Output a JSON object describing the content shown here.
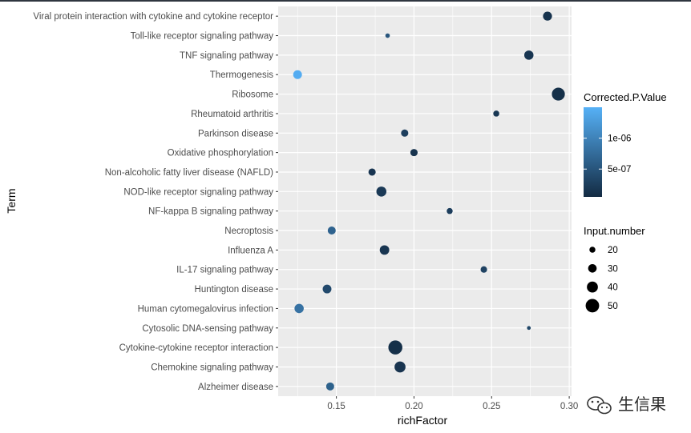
{
  "chart_data": {
    "type": "scatter",
    "xlabel": "richFactor",
    "ylabel": "Term",
    "xlim": [
      0.1125,
      0.3015
    ],
    "x_ticks": [
      0.15,
      0.2,
      0.25,
      0.3
    ],
    "x_tick_labels": [
      "0.15",
      "0.20",
      "0.25",
      "0.30"
    ],
    "terms": [
      "Alzheimer disease",
      "Chemokine signaling pathway",
      "Cytokine-cytokine receptor interaction",
      "Cytosolic DNA-sensing pathway",
      "Human cytomegalovirus infection",
      "Huntington disease",
      "IL-17 signaling pathway",
      "Influenza A",
      "Necroptosis",
      "NF-kappa B signaling pathway",
      "NOD-like receptor signaling pathway",
      "Non-alcoholic fatty liver disease (NAFLD)",
      "Oxidative phosphorylation",
      "Parkinson disease",
      "Rheumatoid arthritis",
      "Ribosome",
      "Thermogenesis",
      "TNF signaling pathway",
      "Toll-like receptor signaling pathway",
      "Viral protein interaction with cytokine and cytokine receptor"
    ],
    "points": [
      {
        "term": "Alzheimer disease",
        "richFactor": 0.146,
        "input_number": 28,
        "p_value": 6.4e-07
      },
      {
        "term": "Chemokine signaling pathway",
        "richFactor": 0.191,
        "input_number": 40,
        "p_value": 1.5e-07
      },
      {
        "term": "Cytokine-cytokine receptor interaction",
        "richFactor": 0.188,
        "input_number": 52,
        "p_value": 1e-07
      },
      {
        "term": "Cytosolic DNA-sensing pathway",
        "richFactor": 0.274,
        "input_number": 11,
        "p_value": 3.5e-07
      },
      {
        "term": "Human cytomegalovirus infection",
        "richFactor": 0.126,
        "input_number": 33,
        "p_value": 8.2e-07
      },
      {
        "term": "Huntington disease",
        "richFactor": 0.144,
        "input_number": 31,
        "p_value": 3.8e-07
      },
      {
        "term": "IL-17 signaling pathway",
        "richFactor": 0.245,
        "input_number": 22,
        "p_value": 3e-07
      },
      {
        "term": "Influenza A",
        "richFactor": 0.181,
        "input_number": 34,
        "p_value": 1.6e-07
      },
      {
        "term": "Necroptosis",
        "richFactor": 0.147,
        "input_number": 28,
        "p_value": 6.6e-07
      },
      {
        "term": "NF-kappa B signaling pathway",
        "richFactor": 0.223,
        "input_number": 20,
        "p_value": 2.5e-07
      },
      {
        "term": "NOD-like receptor signaling pathway",
        "richFactor": 0.179,
        "input_number": 36,
        "p_value": 2e-07
      },
      {
        "term": "Non-alcoholic fatty liver disease (NAFLD)",
        "richFactor": 0.173,
        "input_number": 25,
        "p_value": 1.6e-07
      },
      {
        "term": "Oxidative phosphorylation",
        "richFactor": 0.2,
        "input_number": 25,
        "p_value": 1.5e-07
      },
      {
        "term": "Parkinson disease",
        "richFactor": 0.194,
        "input_number": 25,
        "p_value": 2.6e-07
      },
      {
        "term": "Rheumatoid arthritis",
        "richFactor": 0.253,
        "input_number": 20,
        "p_value": 1.9e-07
      },
      {
        "term": "Ribosome",
        "richFactor": 0.293,
        "input_number": 48,
        "p_value": 1e-07
      },
      {
        "term": "Thermogenesis",
        "richFactor": 0.125,
        "input_number": 31,
        "p_value": 1.45e-06
      },
      {
        "term": "TNF signaling pathway",
        "richFactor": 0.274,
        "input_number": 33,
        "p_value": 1.6e-07
      },
      {
        "term": "Toll-like receptor signaling pathway",
        "richFactor": 0.183,
        "input_number": 14,
        "p_value": 5.2e-07
      },
      {
        "term": "Viral protein interaction with cytokine and cytokine receptor",
        "richFactor": 0.286,
        "input_number": 32,
        "p_value": 1.4e-07
      }
    ],
    "color_legend": {
      "title": "Corrected.P.Value",
      "range": [
        5e-08,
        1.5e-06
      ],
      "ticks": [
        5e-07,
        1e-06
      ],
      "tick_labels": [
        "5e-07",
        "1e-06"
      ],
      "low_color": "#132B43",
      "high_color": "#56B1F7"
    },
    "size_legend": {
      "title": "Input.number",
      "range": [
        10,
        55
      ],
      "values": [
        20,
        30,
        40,
        50
      ],
      "labels": [
        "20",
        "30",
        "40",
        "50"
      ]
    },
    "panel_background": "#EBEBEB",
    "grid": true
  },
  "watermark": {
    "text": "生信果"
  }
}
